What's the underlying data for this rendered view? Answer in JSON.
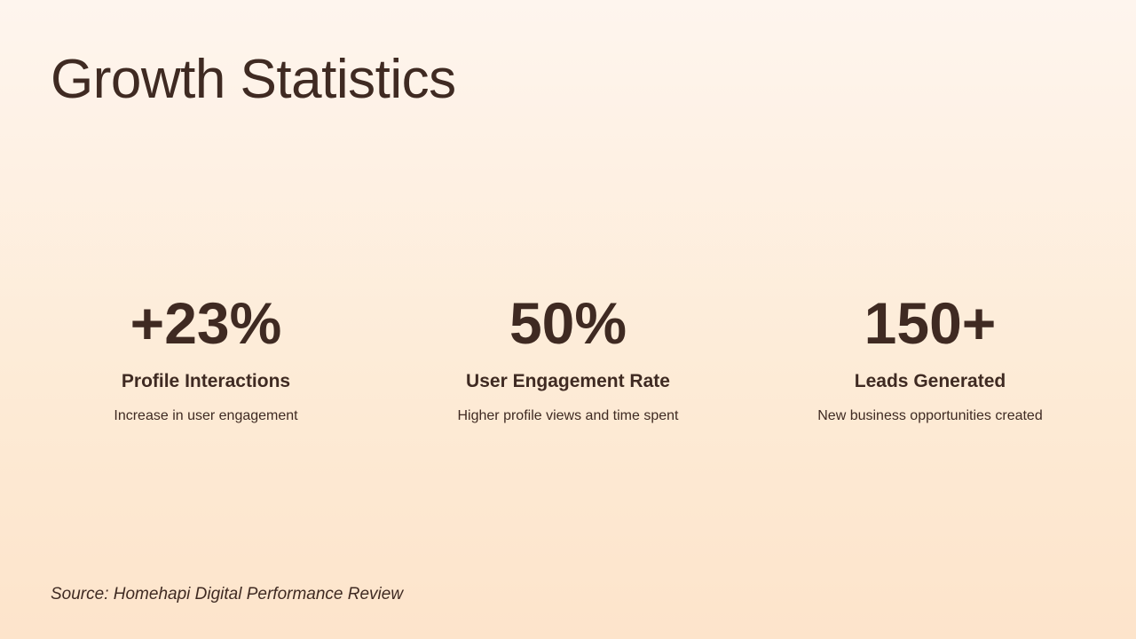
{
  "slide": {
    "title": "Growth Statistics",
    "stats": [
      {
        "value": "+23%",
        "label": "Profile Interactions",
        "description": "Increase in user engagement"
      },
      {
        "value": "50%",
        "label": "User Engagement Rate",
        "description": "Higher profile views and time spent"
      },
      {
        "value": "150+",
        "label": "Leads Generated",
        "description": "New business opportunities created"
      }
    ],
    "source": "Source: Homehapi Digital Performance Review"
  },
  "colors": {
    "text": "#3f2a22",
    "background_top": "#fef5ee",
    "background_bottom": "#fde4cb"
  }
}
